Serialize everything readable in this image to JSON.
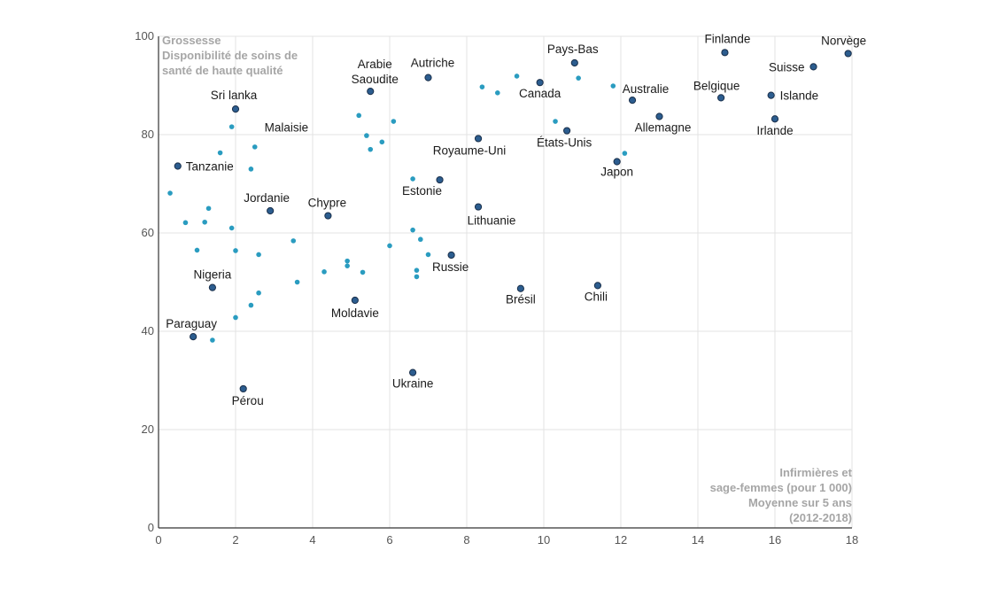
{
  "chart_data": {
    "type": "scatter",
    "title": "",
    "ylabel_lines": [
      "Grossesse",
      "Disponibilité de soins de",
      "santé de haute qualité"
    ],
    "xlabel_lines": [
      "Infirmières et",
      "sage-femmes (pour 1 000)",
      "Moyenne sur 5 ans",
      "(2012-2018)"
    ],
    "xlim": [
      0,
      18
    ],
    "ylim": [
      0,
      100
    ],
    "x_ticks": [
      0,
      2,
      4,
      6,
      8,
      10,
      12,
      14,
      16,
      18
    ],
    "y_ticks": [
      0,
      20,
      40,
      60,
      80,
      100
    ],
    "grid": "vertical and horizontal",
    "colors": {
      "labeled_point": "#2c5d8f",
      "labeled_point_stroke": "#1a2f4a",
      "unlabeled_point": "#2a9cc0",
      "grid": "#e3e3e3",
      "axis": "#333333",
      "axis_title": "#a6a6a6"
    },
    "labeled_points": [
      {
        "label": "Norvège",
        "x": 17.9,
        "y": 96.5
      },
      {
        "label": "Finlande",
        "x": 14.7,
        "y": 96.7
      },
      {
        "label": "Suisse",
        "x": 17.0,
        "y": 93.8
      },
      {
        "label": "Islande",
        "x": 15.9,
        "y": 88.0
      },
      {
        "label": "Belgique",
        "x": 14.6,
        "y": 87.5
      },
      {
        "label": "Irlande",
        "x": 16.0,
        "y": 83.2
      },
      {
        "label": "Pays-Bas",
        "x": 10.8,
        "y": 94.6
      },
      {
        "label": "Canada",
        "x": 9.9,
        "y": 90.6
      },
      {
        "label": "Australie",
        "x": 12.3,
        "y": 87.0
      },
      {
        "label": "Allemagne",
        "x": 13.0,
        "y": 83.7
      },
      {
        "label": "États-Unis",
        "x": 10.6,
        "y": 80.8
      },
      {
        "label": "Japon",
        "x": 11.9,
        "y": 74.5
      },
      {
        "label": "Autriche",
        "x": 7.0,
        "y": 91.6
      },
      {
        "label": "Arabie Saoudite",
        "x": 5.5,
        "y": 88.8
      },
      {
        "label": "Royaume-Uni",
        "x": 8.3,
        "y": 79.2
      },
      {
        "label": "Estonie",
        "x": 7.3,
        "y": 70.8
      },
      {
        "label": "Lithuanie",
        "x": 8.3,
        "y": 65.3
      },
      {
        "label": "Russie",
        "x": 7.6,
        "y": 55.5
      },
      {
        "label": "Brésil",
        "x": 9.4,
        "y": 48.7
      },
      {
        "label": "Chili",
        "x": 11.4,
        "y": 49.3
      },
      {
        "label": "Ukraine",
        "x": 6.6,
        "y": 31.6
      },
      {
        "label": "Moldavie",
        "x": 5.1,
        "y": 46.3
      },
      {
        "label": "Chypre",
        "x": 4.4,
        "y": 63.5
      },
      {
        "label": "Jordanie",
        "x": 2.9,
        "y": 64.5
      },
      {
        "label": "Sri lanka",
        "x": 2.0,
        "y": 85.2
      },
      {
        "label": "Tanzanie",
        "x": 0.5,
        "y": 73.6
      },
      {
        "label": "Nigeria",
        "x": 1.4,
        "y": 48.9
      },
      {
        "label": "Paraguay",
        "x": 0.9,
        "y": 38.9
      },
      {
        "label": "Pérou",
        "x": 2.2,
        "y": 28.3
      }
    ],
    "unlabeled_points": [
      {
        "x": 0.3,
        "y": 68.1
      },
      {
        "x": 0.7,
        "y": 62.1
      },
      {
        "x": 1.0,
        "y": 56.5
      },
      {
        "x": 1.2,
        "y": 62.2
      },
      {
        "x": 1.3,
        "y": 65.0
      },
      {
        "x": 1.4,
        "y": 38.2
      },
      {
        "x": 1.6,
        "y": 76.3
      },
      {
        "x": 1.9,
        "y": 61.0
      },
      {
        "x": 1.9,
        "y": 81.6
      },
      {
        "x": 2.0,
        "y": 56.4
      },
      {
        "x": 2.0,
        "y": 42.8
      },
      {
        "x": 2.4,
        "y": 45.3
      },
      {
        "x": 2.4,
        "y": 73.0
      },
      {
        "x": 2.5,
        "y": 77.5
      },
      {
        "x": 2.6,
        "y": 47.8
      },
      {
        "x": 2.6,
        "y": 55.6
      },
      {
        "x": 3.5,
        "y": 58.4
      },
      {
        "x": 3.6,
        "y": 50.0
      },
      {
        "x": 4.3,
        "y": 52.1
      },
      {
        "x": 4.9,
        "y": 53.3
      },
      {
        "x": 4.9,
        "y": 54.3
      },
      {
        "x": 5.2,
        "y": 83.9
      },
      {
        "x": 5.3,
        "y": 52.0
      },
      {
        "x": 5.4,
        "y": 79.8
      },
      {
        "x": 5.5,
        "y": 77.0
      },
      {
        "x": 5.8,
        "y": 78.5
      },
      {
        "x": 6.0,
        "y": 57.4
      },
      {
        "x": 6.1,
        "y": 82.7
      },
      {
        "x": 6.6,
        "y": 71.0
      },
      {
        "x": 6.6,
        "y": 60.6
      },
      {
        "x": 6.7,
        "y": 52.4
      },
      {
        "x": 6.7,
        "y": 51.1
      },
      {
        "x": 6.8,
        "y": 58.7
      },
      {
        "x": 7.0,
        "y": 55.6
      },
      {
        "x": 8.4,
        "y": 89.7
      },
      {
        "x": 8.8,
        "y": 88.5
      },
      {
        "x": 9.3,
        "y": 91.9
      },
      {
        "x": 10.3,
        "y": 82.7
      },
      {
        "x": 10.9,
        "y": 91.5
      },
      {
        "x": 11.8,
        "y": 89.9
      },
      {
        "x": 12.1,
        "y": 76.2
      }
    ]
  }
}
